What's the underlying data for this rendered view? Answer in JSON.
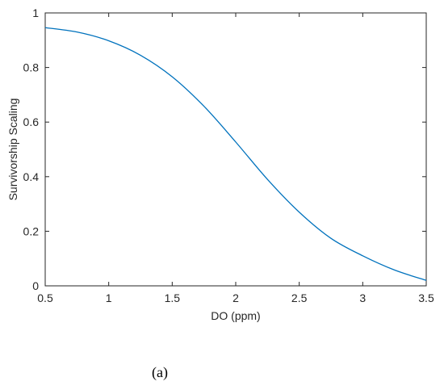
{
  "chart_data": {
    "type": "line",
    "title": "",
    "xlabel": "DO (ppm)",
    "ylabel": "Survivorship Scaling",
    "xlim": [
      0.5,
      3.5
    ],
    "ylim": [
      0,
      1
    ],
    "xticks": [
      0.5,
      1,
      1.5,
      2,
      2.5,
      3,
      3.5
    ],
    "xtick_labels": [
      "0.5",
      "1",
      "1.5",
      "2",
      "2.5",
      "3",
      "3.5"
    ],
    "yticks": [
      0,
      0.2,
      0.4,
      0.6,
      0.8,
      1
    ],
    "ytick_labels": [
      "0",
      "0.2",
      "0.4",
      "0.6",
      "0.8",
      "1"
    ],
    "grid": false,
    "box": true,
    "line_color": "#0072BD",
    "series": [
      {
        "x": [
          0.5,
          0.75,
          1.0,
          1.25,
          1.5,
          1.75,
          2.0,
          2.25,
          2.5,
          2.75,
          3.0,
          3.25,
          3.5
        ],
        "y": [
          0.946,
          0.93,
          0.898,
          0.845,
          0.766,
          0.658,
          0.527,
          0.39,
          0.27,
          0.174,
          0.11,
          0.058,
          0.02
        ]
      }
    ]
  },
  "caption": "(a)"
}
